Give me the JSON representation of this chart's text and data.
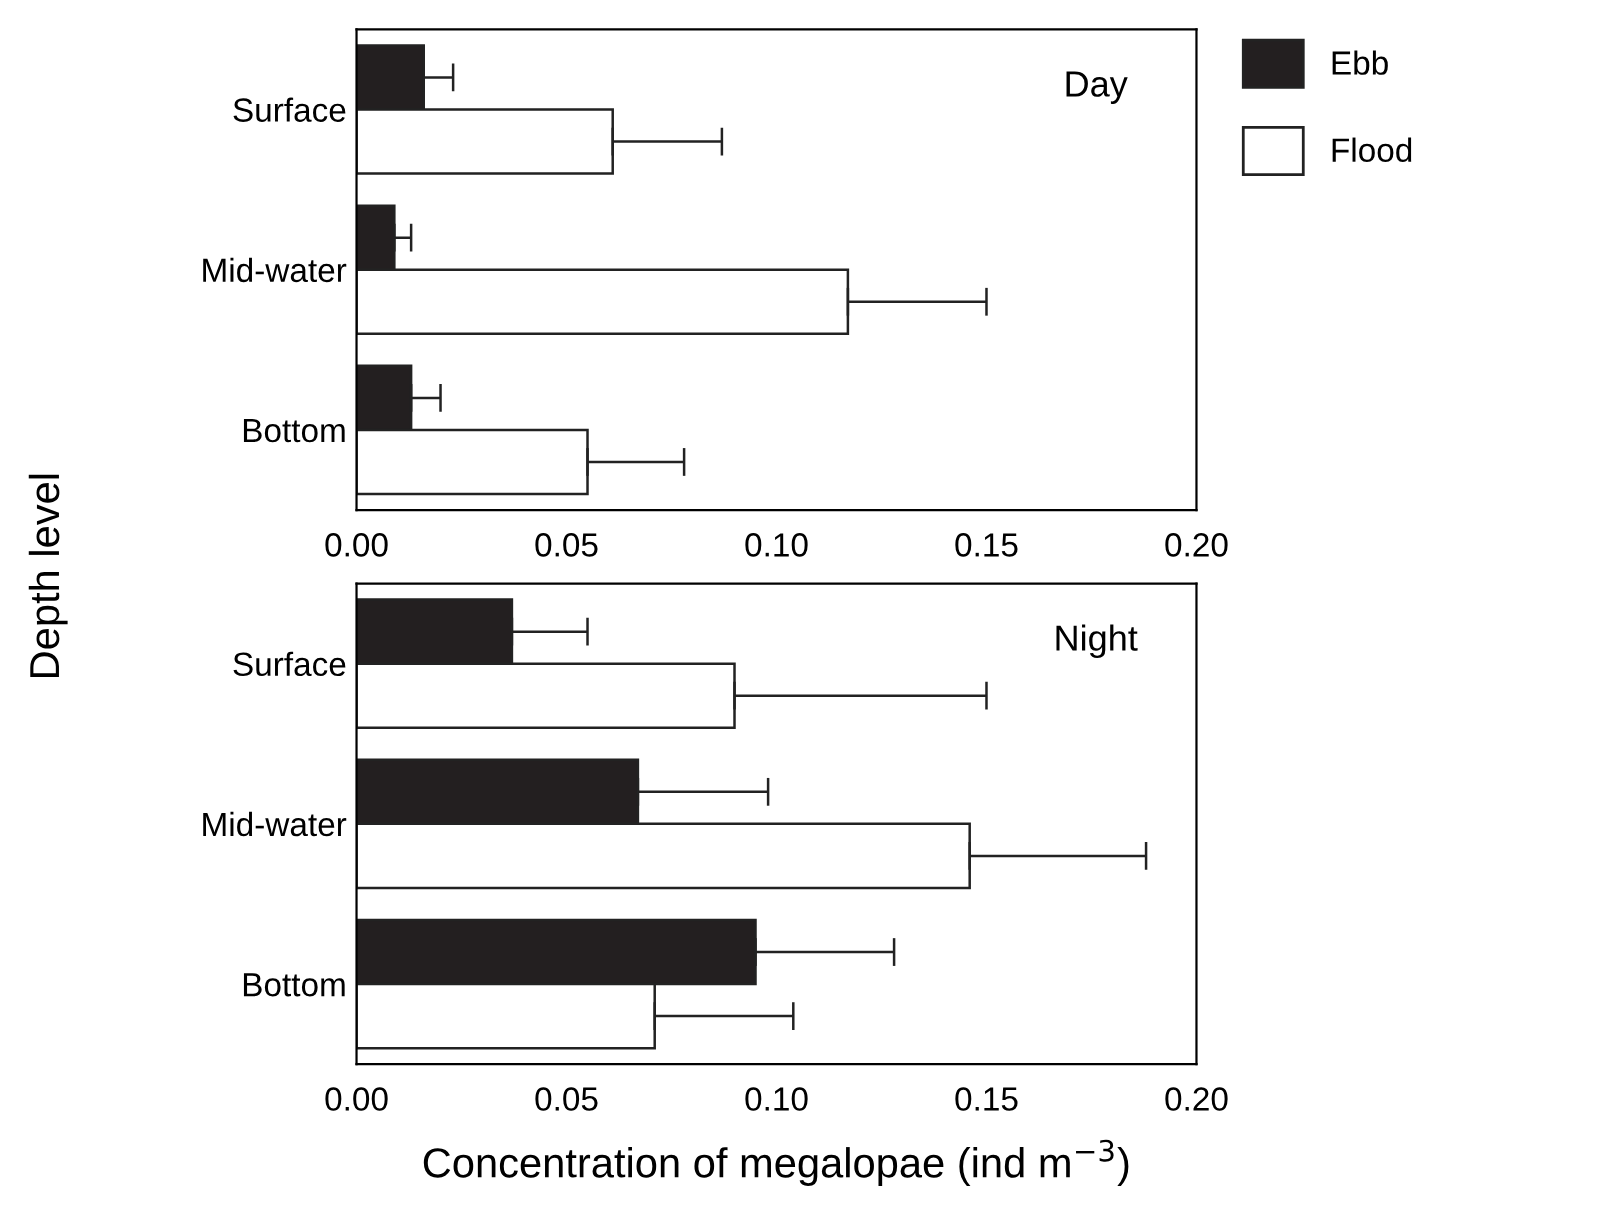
{
  "chart_data": [
    {
      "type": "bar",
      "orientation": "horizontal",
      "categories": [
        "Surface",
        "Mid-water",
        "Bottom"
      ],
      "ylabel": "Depth level",
      "annotations": [
        "Day"
      ],
      "legend": "right",
      "grid": false,
      "series": [
        {
          "name": "Ebb",
          "color": "#231f20",
          "values": [
            0.016,
            0.009,
            0.013
          ],
          "errors": [
            0.007,
            0.004,
            0.007
          ]
        },
        {
          "name": "Flood",
          "color": "#ffffff",
          "values": [
            0.061,
            0.117,
            0.055
          ],
          "errors": [
            0.026,
            0.033,
            0.023
          ]
        }
      ],
      "xlim": [
        0,
        0.2
      ],
      "xticks": [
        {
          "value": 0,
          "label": "0.00"
        },
        {
          "value": 0.05,
          "label": "0.05"
        },
        {
          "value": 0.1,
          "label": "0.10"
        },
        {
          "value": 0.15,
          "label": "0.15"
        },
        {
          "value": 0.2,
          "label": "0.20"
        }
      ]
    },
    {
      "type": "bar",
      "orientation": "horizontal",
      "categories": [
        "Surface",
        "Mid-water",
        "Bottom"
      ],
      "xlabel": "Concentration of megalopae (ind m$^{−3}$)",
      "annotations": [
        "Night"
      ],
      "grid": false,
      "series": [
        {
          "color": "#231f20",
          "values": [
            0.037,
            0.067,
            0.095
          ],
          "errors": [
            0.018,
            0.031,
            0.033
          ]
        },
        {
          "color": "#ffffff",
          "values": [
            0.09,
            0.146,
            0.071
          ],
          "errors": [
            0.06,
            0.042,
            0.033
          ]
        }
      ],
      "xlim": [
        0,
        0.2
      ],
      "xticks": [
        {
          "value": 0,
          "label": "0.00"
        },
        {
          "value": 0.05,
          "label": "0.05"
        },
        {
          "value": 0.1,
          "label": "0.10"
        },
        {
          "value": 0.15,
          "label": "0.15"
        },
        {
          "value": 0.2,
          "label": "0.20"
        }
      ]
    }
  ]
}
